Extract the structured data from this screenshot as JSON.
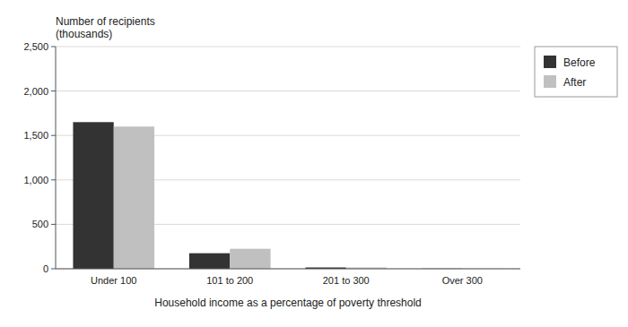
{
  "chart_data": {
    "type": "bar",
    "categories": [
      "Under 100",
      "101 to 200",
      "201 to 300",
      "Over 300"
    ],
    "series": [
      {
        "name": "Before",
        "color": "#333333",
        "values": [
          1650,
          175,
          15,
          2
        ]
      },
      {
        "name": "After",
        "color": "#c0c0c0",
        "values": [
          1600,
          225,
          15,
          2
        ]
      }
    ],
    "xlabel": "Household income as a percentage of poverty threshold",
    "ylabel": [
      "Number of recipients",
      "(thousands)"
    ],
    "ylim": [
      0,
      2500
    ],
    "yticks": [
      0,
      500,
      {
        "value": 1000,
        "label": "1,000"
      },
      {
        "value": 1500,
        "label": "1,500"
      },
      {
        "value": 2000,
        "label": "2,000"
      },
      {
        "value": 2500,
        "label": "2,500"
      }
    ],
    "grid": true,
    "legend": "right"
  }
}
